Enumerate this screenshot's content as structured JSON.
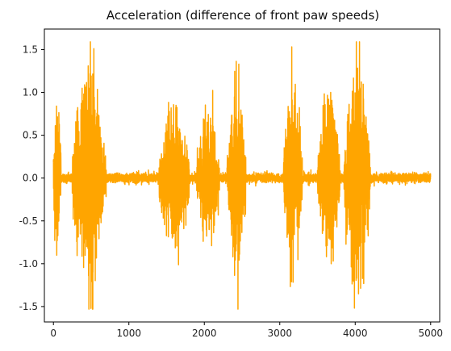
{
  "chart_data": {
    "type": "line",
    "title": "Acceleration (difference of front paw speeds)",
    "xlabel": "",
    "ylabel": "",
    "xlim": [
      -120,
      5120
    ],
    "ylim": [
      -1.68,
      1.74
    ],
    "xticks": [
      0,
      1000,
      2000,
      3000,
      4000,
      5000
    ],
    "yticks": [
      -1.5,
      -1.0,
      -0.5,
      0.0,
      0.5,
      1.0,
      1.5
    ],
    "xtick_labels": [
      "0",
      "1000",
      "2000",
      "3000",
      "4000",
      "5000"
    ],
    "ytick_labels": [
      "-1.5",
      "-1.0",
      "-0.5",
      "0.0",
      "0.5",
      "1.0",
      "1.5"
    ],
    "grid": false,
    "series": [
      {
        "color": "#ffa500",
        "n_points": 5000,
        "x_start": 0,
        "x_end": 4999,
        "summary": {
          "min": -1.53,
          "max": 1.59,
          "baseline": 0.0
        },
        "activity_bursts": [
          {
            "x_range": [
              0,
              100
            ],
            "peak_pos": 0.84,
            "peak_neg": -0.9
          },
          {
            "x_range": [
              250,
              700
            ],
            "peak_pos": 1.31,
            "peak_neg": -1.53
          },
          {
            "x_range": [
              1400,
              1800
            ],
            "peak_pos": 0.85,
            "peak_neg": -0.7
          },
          {
            "x_range": [
              1900,
              2200
            ],
            "peak_pos": 0.7,
            "peak_neg": -0.6
          },
          {
            "x_range": [
              2300,
              2550
            ],
            "peak_pos": 1.33,
            "peak_neg": -0.85
          },
          {
            "x_range": [
              3050,
              3300
            ],
            "peak_pos": 0.65,
            "peak_neg": -1.21
          },
          {
            "x_range": [
              3500,
              3800
            ],
            "peak_pos": 0.85,
            "peak_neg": -1.0
          },
          {
            "x_range": [
              3850,
              4200
            ],
            "peak_pos": 1.59,
            "peak_neg": -1.17
          }
        ]
      }
    ]
  }
}
